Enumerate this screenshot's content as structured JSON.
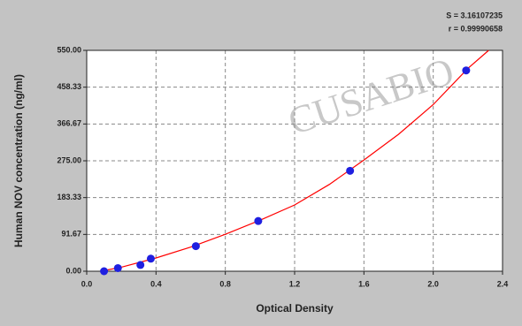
{
  "chart_data": {
    "type": "scatter",
    "x_label": "Optical Density",
    "y_label": "Human NOV concentration (ng/ml)",
    "annotations": [
      "S = 3.16107235",
      "r = 0.99990658"
    ],
    "watermark": "CUSABIO",
    "x": [
      0.1,
      0.18,
      0.31,
      0.37,
      0.63,
      0.99,
      1.52,
      2.19
    ],
    "values": [
      0,
      7.8,
      15.6,
      31.25,
      62.5,
      125,
      250,
      500
    ],
    "color": "#1f1fe0",
    "curve": {
      "color": "#ff0000",
      "x": [
        0.08,
        0.2,
        0.4,
        0.6,
        0.8,
        1.0,
        1.2,
        1.4,
        1.6,
        1.8,
        2.0,
        2.2,
        2.32
      ],
      "y": [
        0,
        10,
        33,
        60,
        92,
        127,
        165,
        216,
        277,
        341,
        415,
        505,
        550
      ]
    },
    "xlim": [
      0,
      2.4
    ],
    "xticks": [
      {
        "value": 0,
        "label": "0.0"
      },
      {
        "value": 0.4,
        "label": "0.4"
      },
      {
        "value": 0.8,
        "label": "0.8"
      },
      {
        "value": 1.2,
        "label": "1.2"
      },
      {
        "value": 1.6,
        "label": "1.6"
      },
      {
        "value": 2.0,
        "label": "2.0"
      },
      {
        "value": 2.4,
        "label": "2.4"
      }
    ],
    "ylim": [
      0,
      550
    ],
    "yticks": [
      {
        "value": 0,
        "label": "0.00"
      },
      {
        "value": 91.67,
        "label": "91.67"
      },
      {
        "value": 183.33,
        "label": "183.33"
      },
      {
        "value": 275,
        "label": "275.00"
      },
      {
        "value": 366.67,
        "label": "366.67"
      },
      {
        "value": 458.33,
        "label": "458.33"
      },
      {
        "value": 550,
        "label": "550.00"
      }
    ],
    "grid": true
  }
}
